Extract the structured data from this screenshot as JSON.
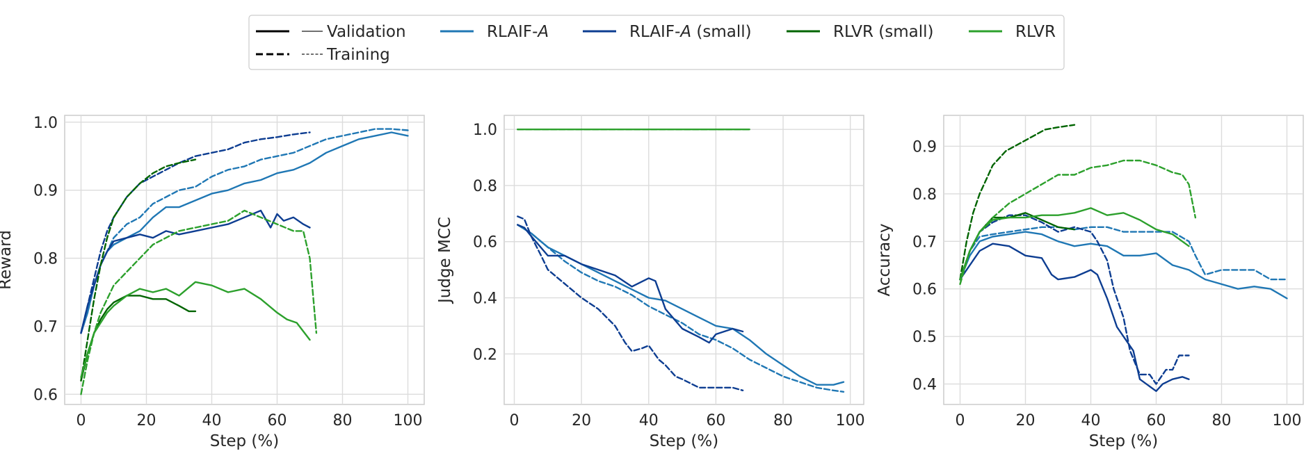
{
  "legend": {
    "style_entries": [
      {
        "label": "Validation",
        "style": "solid"
      },
      {
        "label": "Training",
        "style": "dashed"
      }
    ],
    "series": [
      {
        "name": "RLAIF-",
        "emph": "A",
        "suffix": "",
        "color": "#1f77b4"
      },
      {
        "name": "RLAIF-",
        "emph": "A",
        "suffix": " (small)",
        "color": "#0d3d91"
      },
      {
        "name": "RLVR (small)",
        "emph": "",
        "suffix": "",
        "color": "#006400"
      },
      {
        "name": "RLVR",
        "emph": "",
        "suffix": "",
        "color": "#2ca02c"
      }
    ]
  },
  "chart_data": [
    {
      "type": "line",
      "xlabel": "Step (%)",
      "ylabel": "Reward",
      "xlim": [
        -5,
        105
      ],
      "ylim": [
        0.585,
        1.01
      ],
      "xticks": [
        0,
        20,
        40,
        60,
        80,
        100
      ],
      "yticks": [
        0.6,
        0.7,
        0.8,
        0.9,
        1.0
      ],
      "ytick_labels": [
        "0.6",
        "0.7",
        "0.8",
        "0.9",
        "1.0"
      ],
      "grid": true,
      "series": [
        {
          "key": "rlaif",
          "split": "training",
          "x": [
            0,
            2,
            4,
            6,
            8,
            10,
            14,
            18,
            22,
            26,
            30,
            35,
            40,
            45,
            50,
            55,
            60,
            65,
            70,
            75,
            80,
            85,
            90,
            95,
            100
          ],
          "y": [
            0.69,
            0.72,
            0.76,
            0.79,
            0.81,
            0.83,
            0.85,
            0.86,
            0.88,
            0.89,
            0.9,
            0.905,
            0.92,
            0.93,
            0.935,
            0.945,
            0.95,
            0.955,
            0.965,
            0.975,
            0.98,
            0.985,
            0.99,
            0.99,
            0.988
          ]
        },
        {
          "key": "rlaif",
          "split": "validation",
          "x": [
            0,
            2,
            4,
            6,
            8,
            10,
            14,
            18,
            22,
            26,
            30,
            35,
            40,
            45,
            50,
            55,
            60,
            65,
            70,
            75,
            80,
            85,
            90,
            95,
            100
          ],
          "y": [
            0.69,
            0.72,
            0.76,
            0.79,
            0.81,
            0.82,
            0.83,
            0.84,
            0.86,
            0.875,
            0.875,
            0.885,
            0.895,
            0.9,
            0.91,
            0.915,
            0.925,
            0.93,
            0.94,
            0.955,
            0.965,
            0.975,
            0.98,
            0.985,
            0.98
          ]
        },
        {
          "key": "rlaif_small",
          "split": "training",
          "x": [
            0,
            2,
            4,
            6,
            8,
            10,
            14,
            18,
            22,
            26,
            30,
            35,
            40,
            45,
            50,
            55,
            60,
            65,
            70
          ],
          "y": [
            0.69,
            0.73,
            0.77,
            0.81,
            0.84,
            0.86,
            0.89,
            0.91,
            0.92,
            0.93,
            0.94,
            0.95,
            0.955,
            0.96,
            0.97,
            0.975,
            0.978,
            0.982,
            0.985
          ]
        },
        {
          "key": "rlaif_small",
          "split": "validation",
          "x": [
            0,
            2,
            4,
            6,
            8,
            10,
            14,
            18,
            22,
            26,
            30,
            35,
            40,
            45,
            50,
            55,
            58,
            60,
            62,
            65,
            68,
            70
          ],
          "y": [
            0.69,
            0.73,
            0.76,
            0.79,
            0.81,
            0.825,
            0.83,
            0.835,
            0.83,
            0.84,
            0.835,
            0.84,
            0.845,
            0.85,
            0.86,
            0.87,
            0.845,
            0.865,
            0.855,
            0.86,
            0.85,
            0.845
          ]
        },
        {
          "key": "rlvr_small",
          "split": "training",
          "x": [
            0,
            2,
            4,
            6,
            8,
            10,
            14,
            18,
            22,
            26,
            30,
            35
          ],
          "y": [
            0.62,
            0.68,
            0.74,
            0.79,
            0.83,
            0.86,
            0.89,
            0.91,
            0.925,
            0.935,
            0.94,
            0.945
          ]
        },
        {
          "key": "rlvr_small",
          "split": "validation",
          "x": [
            0,
            2,
            4,
            6,
            8,
            10,
            14,
            18,
            22,
            26,
            30,
            33,
            35
          ],
          "y": [
            0.62,
            0.66,
            0.69,
            0.71,
            0.725,
            0.735,
            0.745,
            0.745,
            0.74,
            0.74,
            0.73,
            0.722,
            0.722
          ]
        },
        {
          "key": "rlvr",
          "split": "training",
          "x": [
            0,
            2,
            4,
            6,
            8,
            10,
            14,
            18,
            22,
            26,
            30,
            35,
            40,
            45,
            50,
            55,
            60,
            65,
            68,
            70,
            72
          ],
          "y": [
            0.6,
            0.65,
            0.69,
            0.72,
            0.74,
            0.76,
            0.78,
            0.8,
            0.82,
            0.83,
            0.84,
            0.845,
            0.85,
            0.855,
            0.87,
            0.86,
            0.85,
            0.84,
            0.84,
            0.8,
            0.69
          ]
        },
        {
          "key": "rlvr",
          "split": "validation",
          "x": [
            0,
            2,
            4,
            6,
            8,
            10,
            14,
            18,
            22,
            26,
            30,
            35,
            40,
            45,
            50,
            55,
            60,
            63,
            66,
            70
          ],
          "y": [
            0.625,
            0.66,
            0.69,
            0.705,
            0.72,
            0.73,
            0.745,
            0.755,
            0.75,
            0.755,
            0.745,
            0.765,
            0.76,
            0.75,
            0.755,
            0.74,
            0.72,
            0.71,
            0.705,
            0.68
          ]
        }
      ]
    },
    {
      "type": "line",
      "xlabel": "Step (%)",
      "ylabel": "Judge MCC",
      "xlim": [
        -3,
        104
      ],
      "ylim": [
        0.02,
        1.05
      ],
      "xticks": [
        0,
        20,
        40,
        60,
        80,
        100
      ],
      "yticks": [
        0.2,
        0.4,
        0.6,
        0.8,
        1.0
      ],
      "ytick_labels": [
        "0.2",
        "0.4",
        "0.6",
        "0.8",
        "1.0"
      ],
      "grid": true,
      "series": [
        {
          "key": "rlvr",
          "split": "training",
          "x": [
            1,
            70
          ],
          "y": [
            1.0,
            1.0
          ]
        },
        {
          "key": "rlvr",
          "split": "validation",
          "x": [
            1,
            70
          ],
          "y": [
            1.0,
            1.0
          ]
        },
        {
          "key": "rlaif",
          "split": "training",
          "x": [
            1,
            5,
            10,
            15,
            20,
            25,
            30,
            35,
            40,
            45,
            50,
            55,
            60,
            65,
            70,
            75,
            80,
            85,
            90,
            95,
            98
          ],
          "y": [
            0.66,
            0.63,
            0.58,
            0.53,
            0.49,
            0.46,
            0.44,
            0.41,
            0.37,
            0.34,
            0.31,
            0.27,
            0.25,
            0.22,
            0.18,
            0.15,
            0.12,
            0.1,
            0.08,
            0.07,
            0.065
          ]
        },
        {
          "key": "rlaif",
          "split": "validation",
          "x": [
            1,
            5,
            10,
            15,
            20,
            25,
            30,
            35,
            40,
            45,
            50,
            55,
            60,
            65,
            70,
            75,
            80,
            85,
            90,
            95,
            98
          ],
          "y": [
            0.66,
            0.63,
            0.58,
            0.55,
            0.52,
            0.49,
            0.46,
            0.43,
            0.4,
            0.39,
            0.36,
            0.33,
            0.3,
            0.29,
            0.25,
            0.2,
            0.16,
            0.12,
            0.09,
            0.09,
            0.1
          ]
        },
        {
          "key": "rlaif_small",
          "split": "training",
          "x": [
            1,
            3,
            5,
            8,
            10,
            15,
            20,
            25,
            30,
            33,
            35,
            38,
            40,
            43,
            45,
            48,
            50,
            55,
            60,
            65,
            68
          ],
          "y": [
            0.69,
            0.68,
            0.62,
            0.55,
            0.5,
            0.45,
            0.4,
            0.36,
            0.3,
            0.24,
            0.21,
            0.22,
            0.23,
            0.18,
            0.16,
            0.12,
            0.11,
            0.08,
            0.08,
            0.08,
            0.07
          ]
        },
        {
          "key": "rlaif_small",
          "split": "validation",
          "x": [
            1,
            3,
            5,
            10,
            15,
            20,
            25,
            30,
            35,
            40,
            42,
            45,
            50,
            55,
            58,
            60,
            65,
            68
          ],
          "y": [
            0.66,
            0.65,
            0.62,
            0.55,
            0.55,
            0.52,
            0.5,
            0.48,
            0.44,
            0.47,
            0.46,
            0.36,
            0.29,
            0.26,
            0.24,
            0.27,
            0.29,
            0.28
          ]
        }
      ]
    },
    {
      "type": "line",
      "xlabel": "Step (%)",
      "ylabel": "Accuracy",
      "xlim": [
        -5,
        105
      ],
      "ylim": [
        0.357,
        0.965
      ],
      "xticks": [
        0,
        20,
        40,
        60,
        80,
        100
      ],
      "yticks": [
        0.4,
        0.5,
        0.6,
        0.7,
        0.8,
        0.9
      ],
      "ytick_labels": [
        "0.4",
        "0.5",
        "0.6",
        "0.7",
        "0.8",
        "0.9"
      ],
      "grid": true,
      "series": [
        {
          "key": "rlaif",
          "split": "training",
          "x": [
            0,
            3,
            6,
            10,
            15,
            20,
            25,
            30,
            35,
            40,
            45,
            50,
            55,
            60,
            65,
            70,
            72,
            75,
            80,
            85,
            90,
            95,
            100
          ],
          "y": [
            0.62,
            0.68,
            0.71,
            0.715,
            0.72,
            0.725,
            0.73,
            0.73,
            0.725,
            0.73,
            0.73,
            0.72,
            0.72,
            0.72,
            0.72,
            0.7,
            0.67,
            0.63,
            0.64,
            0.64,
            0.64,
            0.62,
            0.62
          ]
        },
        {
          "key": "rlaif",
          "split": "validation",
          "x": [
            0,
            3,
            6,
            10,
            15,
            20,
            25,
            30,
            35,
            40,
            45,
            50,
            55,
            60,
            65,
            70,
            75,
            80,
            85,
            90,
            95,
            100
          ],
          "y": [
            0.62,
            0.67,
            0.7,
            0.71,
            0.715,
            0.72,
            0.715,
            0.7,
            0.69,
            0.695,
            0.69,
            0.67,
            0.67,
            0.675,
            0.65,
            0.64,
            0.62,
            0.61,
            0.6,
            0.605,
            0.6,
            0.58
          ]
        },
        {
          "key": "rlaif_small",
          "split": "training",
          "x": [
            0,
            3,
            6,
            10,
            15,
            20,
            25,
            30,
            35,
            40,
            42,
            45,
            47,
            50,
            52,
            55,
            58,
            60,
            63,
            65,
            67,
            70
          ],
          "y": [
            0.62,
            0.68,
            0.72,
            0.74,
            0.755,
            0.755,
            0.74,
            0.72,
            0.73,
            0.72,
            0.7,
            0.66,
            0.6,
            0.54,
            0.47,
            0.42,
            0.42,
            0.4,
            0.43,
            0.43,
            0.46,
            0.46
          ]
        },
        {
          "key": "rlaif_small",
          "split": "validation",
          "x": [
            0,
            3,
            6,
            10,
            15,
            20,
            25,
            28,
            30,
            35,
            40,
            42,
            45,
            48,
            50,
            53,
            55,
            58,
            60,
            62,
            65,
            68,
            70
          ],
          "y": [
            0.62,
            0.65,
            0.68,
            0.695,
            0.69,
            0.67,
            0.665,
            0.63,
            0.62,
            0.625,
            0.64,
            0.63,
            0.58,
            0.52,
            0.5,
            0.47,
            0.41,
            0.395,
            0.385,
            0.4,
            0.41,
            0.415,
            0.41
          ]
        },
        {
          "key": "rlvr_small",
          "split": "training",
          "x": [
            0,
            2,
            4,
            6,
            8,
            10,
            14,
            18,
            22,
            26,
            30,
            35
          ],
          "y": [
            0.62,
            0.7,
            0.76,
            0.8,
            0.83,
            0.86,
            0.89,
            0.905,
            0.92,
            0.935,
            0.94,
            0.945
          ]
        },
        {
          "key": "rlvr_small",
          "split": "validation",
          "x": [
            0,
            3,
            6,
            10,
            15,
            20,
            25,
            30,
            35
          ],
          "y": [
            0.62,
            0.68,
            0.72,
            0.75,
            0.75,
            0.76,
            0.745,
            0.73,
            0.725
          ]
        },
        {
          "key": "rlvr",
          "split": "training",
          "x": [
            0,
            3,
            6,
            10,
            15,
            20,
            25,
            30,
            35,
            40,
            45,
            50,
            55,
            60,
            65,
            68,
            70,
            72
          ],
          "y": [
            0.61,
            0.68,
            0.72,
            0.75,
            0.78,
            0.8,
            0.82,
            0.84,
            0.84,
            0.855,
            0.86,
            0.87,
            0.87,
            0.86,
            0.845,
            0.84,
            0.82,
            0.75
          ]
        },
        {
          "key": "rlvr",
          "split": "validation",
          "x": [
            0,
            3,
            6,
            10,
            15,
            20,
            25,
            30,
            35,
            40,
            45,
            50,
            55,
            60,
            65,
            70
          ],
          "y": [
            0.62,
            0.68,
            0.72,
            0.745,
            0.75,
            0.75,
            0.755,
            0.755,
            0.76,
            0.77,
            0.755,
            0.76,
            0.745,
            0.725,
            0.715,
            0.69
          ]
        }
      ]
    }
  ]
}
